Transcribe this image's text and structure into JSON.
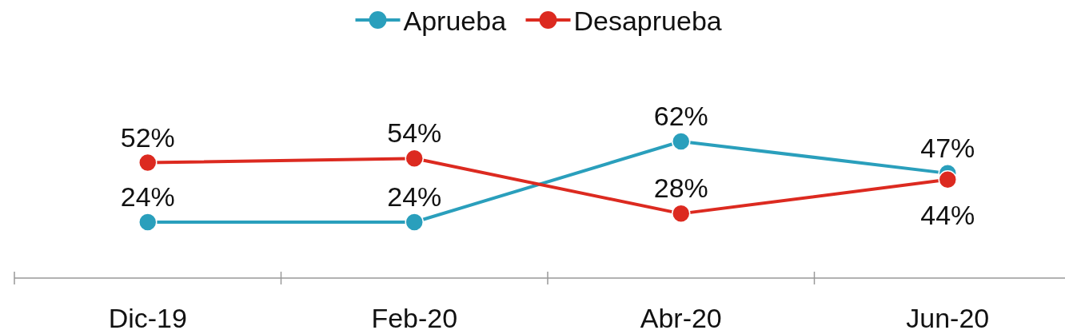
{
  "chart_data": {
    "type": "line",
    "categories": [
      "Dic-19",
      "Feb-20",
      "Abr-20",
      "Jun-20"
    ],
    "series": [
      {
        "name": "Aprueba",
        "color": "#2a9fbc",
        "values": [
          24,
          24,
          62,
          47
        ],
        "value_labels": [
          "24%",
          "24%",
          "62%",
          "47%"
        ]
      },
      {
        "name": "Desaprueba",
        "color": "#dc2a20",
        "values": [
          52,
          54,
          28,
          44
        ],
        "value_labels": [
          "52%",
          "54%",
          "28%",
          "44%"
        ]
      }
    ],
    "legend": "top",
    "marker": "circle"
  }
}
